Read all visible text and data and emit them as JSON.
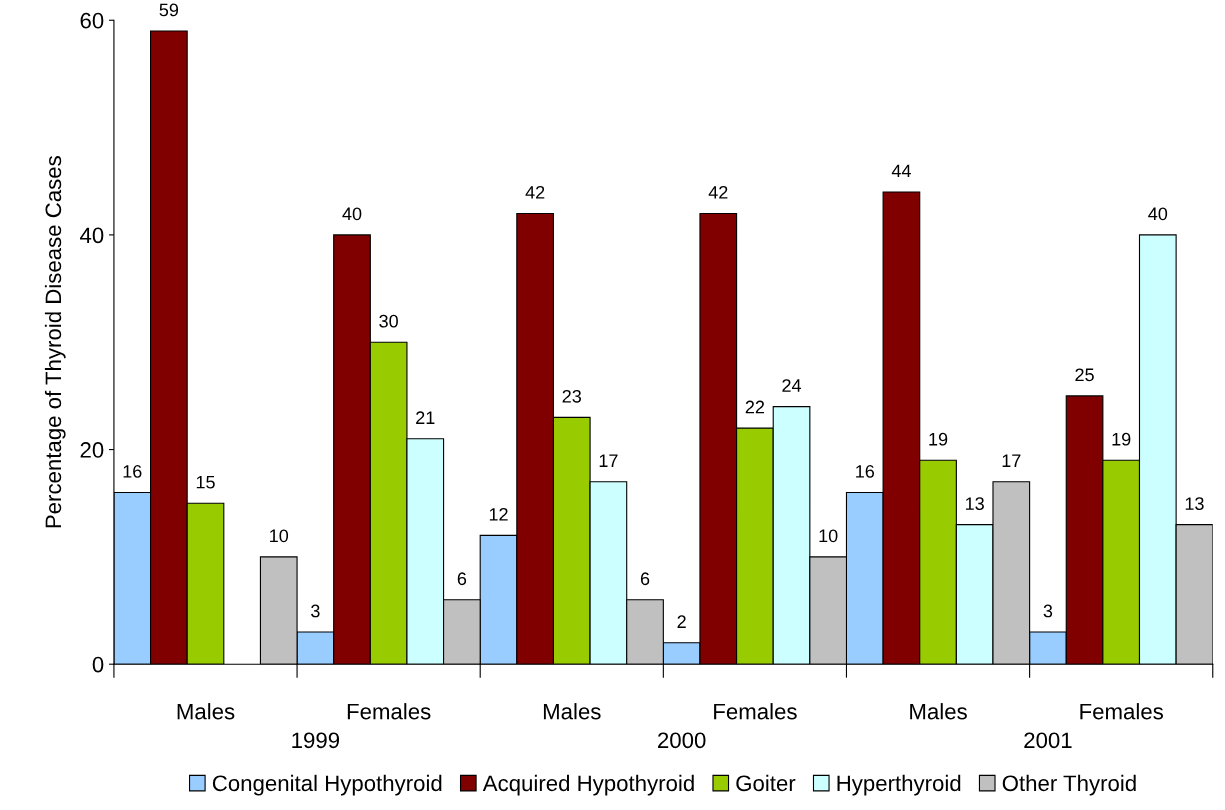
{
  "chart_data": {
    "type": "bar",
    "ylabel": "Percentage of Thyroid Disease Cases",
    "categories": [
      "Males",
      "Females",
      "Males",
      "Females",
      "Males",
      "Females"
    ],
    "series": [
      {
        "name": "Congenital Hypothyroid",
        "color": "#99ccff",
        "values": [
          16,
          3,
          12,
          2,
          16,
          3
        ]
      },
      {
        "name": "Acquired Hypothyroid",
        "color": "#800000",
        "values": [
          59,
          40,
          42,
          42,
          44,
          25
        ]
      },
      {
        "name": "Goiter",
        "color": "#99cc00",
        "values": [
          15,
          30,
          23,
          22,
          19,
          19
        ]
      },
      {
        "name": "Hyperthyroid",
        "color": "#ccffff",
        "values": [
          null,
          21,
          17,
          24,
          13,
          40
        ]
      },
      {
        "name": "Other Thyroid",
        "color": "#c0c0c0",
        "values": [
          10,
          6,
          6,
          10,
          17,
          13
        ]
      }
    ],
    "annotations": [
      "1999",
      "2000",
      "2001"
    ],
    "ylim": [
      0,
      60
    ],
    "yticks": [
      0,
      20,
      40,
      60
    ],
    "grid": false,
    "legend": "bottom",
    "data_labels": true
  }
}
